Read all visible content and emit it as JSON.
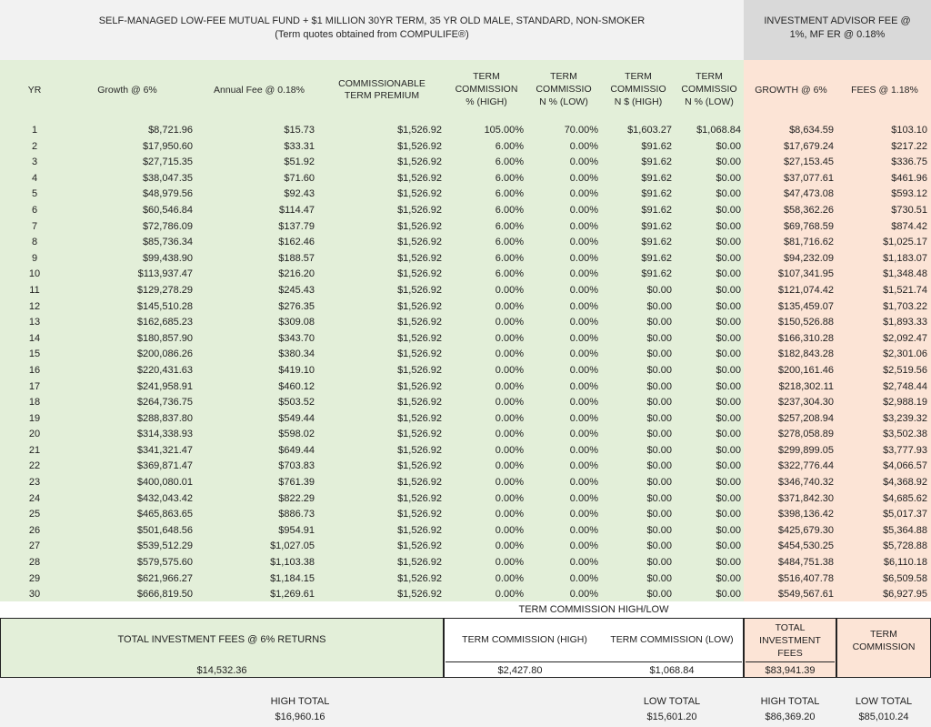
{
  "title": {
    "line1": "SELF-MANAGED LOW-FEE MUTUAL FUND + $1 MILLION 30YR TERM, 35 YR OLD MALE, STANDARD, NON-SMOKER",
    "line2": "(Term quotes obtained from COMPULIFE®)",
    "advisor_line1": "INVESTMENT ADVISOR FEE @",
    "advisor_line2": "1%, MF ER @ 0.18%"
  },
  "headers": {
    "yr": "YR",
    "growth": "Growth @ 6%",
    "annual_fee": "Annual Fee @ 0.18%",
    "comm_prem_1": "COMMISSIONABLE",
    "comm_prem_2": "TERM PREMIUM",
    "tc_pct_high_1": "TERM",
    "tc_pct_high_2": "COMMISSION",
    "tc_pct_high_3": "% (HIGH)",
    "tc_pct_low_1": "TERM",
    "tc_pct_low_2": "COMMISSIO",
    "tc_pct_low_3": "N % (LOW)",
    "tc_amt_high_1": "TERM",
    "tc_amt_high_2": "COMMISSIO",
    "tc_amt_high_3": "N $ (HIGH)",
    "tc_amt_low_1": "TERM",
    "tc_amt_low_2": "COMMISSIO",
    "tc_amt_low_3": "N % (LOW)",
    "growth_adv": "GROWTH @ 6%",
    "fees_adv": "FEES @ 1.18%"
  },
  "rows": [
    [
      "1",
      "$8,721.96",
      "$15.73",
      "$1,526.92",
      "105.00%",
      "70.00%",
      "$1,603.27",
      "$1,068.84",
      "$8,634.59",
      "$103.10"
    ],
    [
      "2",
      "$17,950.60",
      "$33.31",
      "$1,526.92",
      "6.00%",
      "0.00%",
      "$91.62",
      "$0.00",
      "$17,679.24",
      "$217.22"
    ],
    [
      "3",
      "$27,715.35",
      "$51.92",
      "$1,526.92",
      "6.00%",
      "0.00%",
      "$91.62",
      "$0.00",
      "$27,153.45",
      "$336.75"
    ],
    [
      "4",
      "$38,047.35",
      "$71.60",
      "$1,526.92",
      "6.00%",
      "0.00%",
      "$91.62",
      "$0.00",
      "$37,077.61",
      "$461.96"
    ],
    [
      "5",
      "$48,979.56",
      "$92.43",
      "$1,526.92",
      "6.00%",
      "0.00%",
      "$91.62",
      "$0.00",
      "$47,473.08",
      "$593.12"
    ],
    [
      "6",
      "$60,546.84",
      "$114.47",
      "$1,526.92",
      "6.00%",
      "0.00%",
      "$91.62",
      "$0.00",
      "$58,362.26",
      "$730.51"
    ],
    [
      "7",
      "$72,786.09",
      "$137.79",
      "$1,526.92",
      "6.00%",
      "0.00%",
      "$91.62",
      "$0.00",
      "$69,768.59",
      "$874.42"
    ],
    [
      "8",
      "$85,736.34",
      "$162.46",
      "$1,526.92",
      "6.00%",
      "0.00%",
      "$91.62",
      "$0.00",
      "$81,716.62",
      "$1,025.17"
    ],
    [
      "9",
      "$99,438.90",
      "$188.57",
      "$1,526.92",
      "6.00%",
      "0.00%",
      "$91.62",
      "$0.00",
      "$94,232.09",
      "$1,183.07"
    ],
    [
      "10",
      "$113,937.47",
      "$216.20",
      "$1,526.92",
      "6.00%",
      "0.00%",
      "$91.62",
      "$0.00",
      "$107,341.95",
      "$1,348.48"
    ],
    [
      "11",
      "$129,278.29",
      "$245.43",
      "$1,526.92",
      "0.00%",
      "0.00%",
      "$0.00",
      "$0.00",
      "$121,074.42",
      "$1,521.74"
    ],
    [
      "12",
      "$145,510.28",
      "$276.35",
      "$1,526.92",
      "0.00%",
      "0.00%",
      "$0.00",
      "$0.00",
      "$135,459.07",
      "$1,703.22"
    ],
    [
      "13",
      "$162,685.23",
      "$309.08",
      "$1,526.92",
      "0.00%",
      "0.00%",
      "$0.00",
      "$0.00",
      "$150,526.88",
      "$1,893.33"
    ],
    [
      "14",
      "$180,857.90",
      "$343.70",
      "$1,526.92",
      "0.00%",
      "0.00%",
      "$0.00",
      "$0.00",
      "$166,310.28",
      "$2,092.47"
    ],
    [
      "15",
      "$200,086.26",
      "$380.34",
      "$1,526.92",
      "0.00%",
      "0.00%",
      "$0.00",
      "$0.00",
      "$182,843.28",
      "$2,301.06"
    ],
    [
      "16",
      "$220,431.63",
      "$419.10",
      "$1,526.92",
      "0.00%",
      "0.00%",
      "$0.00",
      "$0.00",
      "$200,161.46",
      "$2,519.56"
    ],
    [
      "17",
      "$241,958.91",
      "$460.12",
      "$1,526.92",
      "0.00%",
      "0.00%",
      "$0.00",
      "$0.00",
      "$218,302.11",
      "$2,748.44"
    ],
    [
      "18",
      "$264,736.75",
      "$503.52",
      "$1,526.92",
      "0.00%",
      "0.00%",
      "$0.00",
      "$0.00",
      "$237,304.30",
      "$2,988.19"
    ],
    [
      "19",
      "$288,837.80",
      "$549.44",
      "$1,526.92",
      "0.00%",
      "0.00%",
      "$0.00",
      "$0.00",
      "$257,208.94",
      "$3,239.32"
    ],
    [
      "20",
      "$314,338.93",
      "$598.02",
      "$1,526.92",
      "0.00%",
      "0.00%",
      "$0.00",
      "$0.00",
      "$278,058.89",
      "$3,502.38"
    ],
    [
      "21",
      "$341,321.47",
      "$649.44",
      "$1,526.92",
      "0.00%",
      "0.00%",
      "$0.00",
      "$0.00",
      "$299,899.05",
      "$3,777.93"
    ],
    [
      "22",
      "$369,871.47",
      "$703.83",
      "$1,526.92",
      "0.00%",
      "0.00%",
      "$0.00",
      "$0.00",
      "$322,776.44",
      "$4,066.57"
    ],
    [
      "23",
      "$400,080.01",
      "$761.39",
      "$1,526.92",
      "0.00%",
      "0.00%",
      "$0.00",
      "$0.00",
      "$346,740.32",
      "$4,368.92"
    ],
    [
      "24",
      "$432,043.42",
      "$822.29",
      "$1,526.92",
      "0.00%",
      "0.00%",
      "$0.00",
      "$0.00",
      "$371,842.30",
      "$4,685.62"
    ],
    [
      "25",
      "$465,863.65",
      "$886.73",
      "$1,526.92",
      "0.00%",
      "0.00%",
      "$0.00",
      "$0.00",
      "$398,136.42",
      "$5,017.37"
    ],
    [
      "26",
      "$501,648.56",
      "$954.91",
      "$1,526.92",
      "0.00%",
      "0.00%",
      "$0.00",
      "$0.00",
      "$425,679.30",
      "$5,364.88"
    ],
    [
      "27",
      "$539,512.29",
      "$1,027.05",
      "$1,526.92",
      "0.00%",
      "0.00%",
      "$0.00",
      "$0.00",
      "$454,530.25",
      "$5,728.88"
    ],
    [
      "28",
      "$579,575.60",
      "$1,103.38",
      "$1,526.92",
      "0.00%",
      "0.00%",
      "$0.00",
      "$0.00",
      "$484,751.38",
      "$6,110.18"
    ],
    [
      "29",
      "$621,966.27",
      "$1,184.15",
      "$1,526.92",
      "0.00%",
      "0.00%",
      "$0.00",
      "$0.00",
      "$516,407.78",
      "$6,509.58"
    ],
    [
      "30",
      "$666,819.50",
      "$1,269.61",
      "$1,526.92",
      "0.00%",
      "0.00%",
      "$0.00",
      "$0.00",
      "$549,567.61",
      "$6,927.95"
    ]
  ],
  "summary": {
    "commission_highlow": "TERM COMMISSION HIGH/LOW",
    "total_inv_fees_label": "TOTAL INVESTMENT FEES @ 6% RETURNS",
    "total_inv_fees_value": "$14,532.36",
    "tc_high_label": "TERM COMMISSION (HIGH)",
    "tc_low_label": "TERM COMMISSION (LOW)",
    "tc_high_value": "$2,427.80",
    "tc_low_value": "$1,068.84",
    "adv_total_label_1": "TOTAL",
    "adv_total_label_2": "INVESTMENT",
    "adv_total_label_3": "FEES",
    "adv_total_value": "$83,941.39",
    "adv_tc_label_1": "TERM",
    "adv_tc_label_2": "COMMISSION",
    "high_total_label": "HIGH TOTAL",
    "high_total_value": "$16,960.16",
    "low_total_label": "LOW TOTAL",
    "low_total_value": "$15,601.20",
    "adv_high_total_label": "HIGH TOTAL",
    "adv_high_total_value": "$86,369.20",
    "adv_low_total_label": "LOW TOTAL",
    "adv_low_total_value": "$85,010.24"
  }
}
